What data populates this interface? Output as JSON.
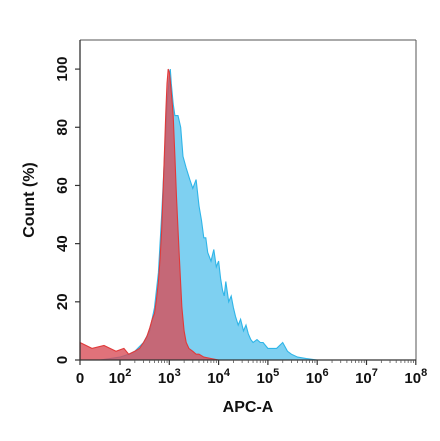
{
  "chart_data": {
    "type": "area",
    "title": "",
    "xlabel": "APC-A",
    "ylabel": "Count  (%)",
    "x_scale": "log",
    "xlim": [
      0,
      100000000
    ],
    "ylim": [
      0,
      110
    ],
    "grid": false,
    "legend": "none",
    "x_ticks": [
      {
        "base": "0",
        "exp": ""
      },
      {
        "base": "10",
        "exp": "2"
      },
      {
        "base": "10",
        "exp": "3"
      },
      {
        "base": "10",
        "exp": "4"
      },
      {
        "base": "10",
        "exp": "5"
      },
      {
        "base": "10",
        "exp": "6"
      },
      {
        "base": "10",
        "exp": "7"
      },
      {
        "base": "10",
        "exp": "8"
      }
    ],
    "y_ticks": [
      "0",
      "20",
      "40",
      "60",
      "80",
      "100"
    ],
    "series": [
      {
        "color": "#2fb5e8",
        "fill": "#67c8ef",
        "points": [
          [
            0,
            0
          ],
          [
            50,
            0
          ],
          [
            100,
            1
          ],
          [
            150,
            2
          ],
          [
            200,
            3
          ],
          [
            300,
            6
          ],
          [
            400,
            10
          ],
          [
            500,
            18
          ],
          [
            600,
            30
          ],
          [
            700,
            50
          ],
          [
            800,
            70
          ],
          [
            900,
            88
          ],
          [
            1000,
            97
          ],
          [
            1050,
            100
          ],
          [
            1100,
            95
          ],
          [
            1200,
            88
          ],
          [
            1300,
            84
          ],
          [
            1500,
            84
          ],
          [
            1700,
            80
          ],
          [
            1900,
            70
          ],
          [
            2200,
            66
          ],
          [
            2600,
            62
          ],
          [
            3000,
            59
          ],
          [
            3500,
            62
          ],
          [
            4000,
            53
          ],
          [
            4500,
            48
          ],
          [
            5000,
            42
          ],
          [
            5500,
            42
          ],
          [
            6000,
            37
          ],
          [
            7000,
            34
          ],
          [
            8000,
            38
          ],
          [
            9000,
            32
          ],
          [
            10000,
            34
          ],
          [
            11000,
            28
          ],
          [
            12000,
            24
          ],
          [
            13000,
            22
          ],
          [
            14000,
            27
          ],
          [
            16000,
            20
          ],
          [
            18000,
            22
          ],
          [
            20000,
            18
          ],
          [
            22000,
            15
          ],
          [
            25000,
            12
          ],
          [
            28000,
            14
          ],
          [
            32000,
            10
          ],
          [
            36000,
            12
          ],
          [
            40000,
            9
          ],
          [
            45000,
            7
          ],
          [
            50000,
            6
          ],
          [
            60000,
            7
          ],
          [
            70000,
            6
          ],
          [
            80000,
            6
          ],
          [
            100000,
            4
          ],
          [
            120000,
            4
          ],
          [
            150000,
            4
          ],
          [
            200000,
            6
          ],
          [
            250000,
            3
          ],
          [
            300000,
            2
          ],
          [
            400000,
            1
          ],
          [
            600000,
            0.5
          ],
          [
            1000000,
            0
          ],
          [
            100000000,
            0
          ]
        ]
      },
      {
        "color": "#e03a3a",
        "fill": "#d94a55",
        "points": [
          [
            0,
            6
          ],
          [
            30,
            4
          ],
          [
            60,
            5
          ],
          [
            90,
            3
          ],
          [
            120,
            4
          ],
          [
            150,
            2
          ],
          [
            200,
            3
          ],
          [
            250,
            4
          ],
          [
            300,
            6
          ],
          [
            350,
            8
          ],
          [
            400,
            11
          ],
          [
            450,
            14
          ],
          [
            500,
            16
          ],
          [
            550,
            21
          ],
          [
            600,
            27
          ],
          [
            650,
            35
          ],
          [
            700,
            45
          ],
          [
            750,
            58
          ],
          [
            800,
            72
          ],
          [
            850,
            85
          ],
          [
            900,
            95
          ],
          [
            950,
            100
          ],
          [
            1000,
            99
          ],
          [
            1050,
            96
          ],
          [
            1100,
            92
          ],
          [
            1150,
            88
          ],
          [
            1200,
            84
          ],
          [
            1300,
            70
          ],
          [
            1400,
            56
          ],
          [
            1500,
            45
          ],
          [
            1600,
            35
          ],
          [
            1700,
            26
          ],
          [
            1800,
            18
          ],
          [
            2000,
            10
          ],
          [
            2200,
            6
          ],
          [
            2500,
            4
          ],
          [
            3000,
            3
          ],
          [
            3500,
            2
          ],
          [
            4000,
            2
          ],
          [
            5000,
            1
          ],
          [
            7000,
            0.5
          ],
          [
            10000,
            0
          ],
          [
            100000000,
            0
          ]
        ]
      }
    ]
  }
}
